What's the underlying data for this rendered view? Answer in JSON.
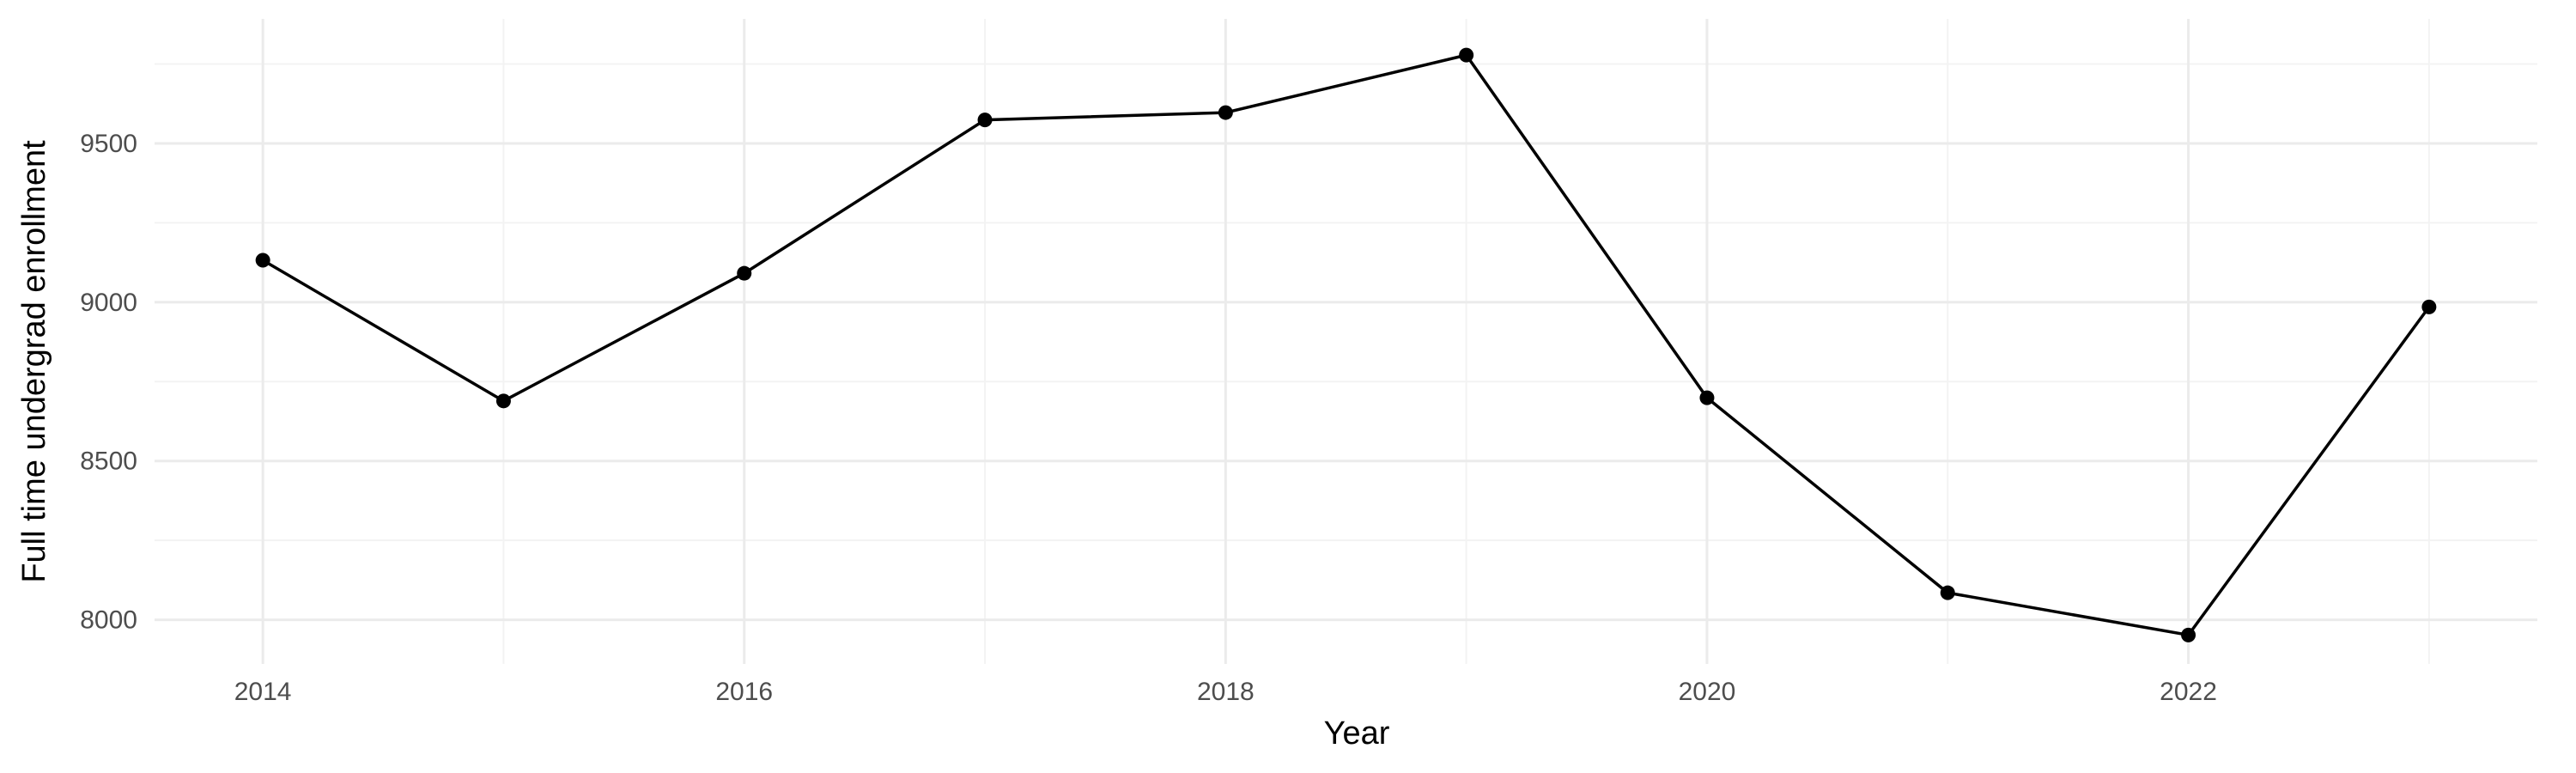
{
  "chart_data": {
    "type": "line",
    "title": "",
    "xlabel": "Year",
    "ylabel": "Full time undergrad enrollment",
    "x": [
      2014,
      2015,
      2016,
      2017,
      2018,
      2019,
      2020,
      2021,
      2022,
      2023
    ],
    "series": [
      {
        "values": [
          9132,
          8689,
          9091,
          9574,
          9597,
          9778,
          8699,
          8085,
          7952,
          8985
        ]
      }
    ],
    "x_ticks": [
      2014,
      2016,
      2018,
      2020,
      2022
    ],
    "x_tick_labels": [
      "2014",
      "2016",
      "2018",
      "2020",
      "2022"
    ],
    "y_ticks": [
      8000,
      8500,
      9000,
      9500
    ],
    "y_tick_labels": [
      "8000",
      "8500",
      "9000",
      "9500"
    ],
    "xlim": [
      2013.55,
      2023.45
    ],
    "ylim": [
      7861,
      9892
    ],
    "grid": true,
    "legend": "none",
    "colors": {
      "line": "#000000",
      "grid": "#ebebeb",
      "background": "#ffffff"
    }
  }
}
